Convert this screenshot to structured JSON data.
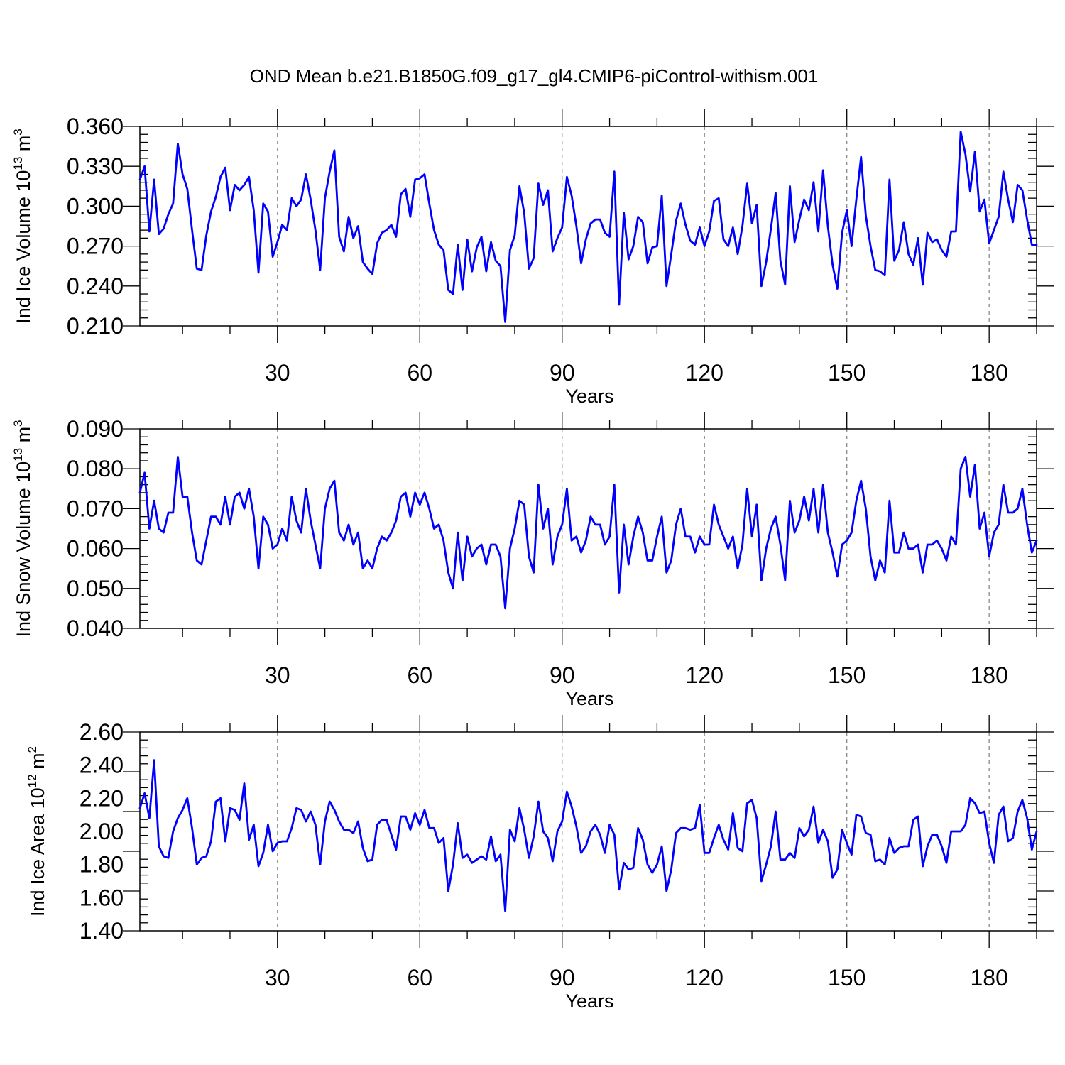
{
  "figure_title": "OND Mean b.e21.B1850G.f09_g17_gl4.CMIP6-piControl-withism.001",
  "line_color": "#0000ff",
  "chart_data": [
    {
      "type": "line",
      "title": "OND Mean b.e21.B1850G.f09_g17_gl4.CMIP6-piControl-withism.001",
      "xlabel": "Years",
      "ylabel": "Ind Ice Volume 10",
      "ylabel_exp": "13",
      "ylabel_unit": " m",
      "ylabel_unit_exp": "3",
      "xlim": [
        1,
        190
      ],
      "ylim": [
        0.21,
        0.36
      ],
      "x_ticks": [
        30,
        60,
        90,
        120,
        150,
        180
      ],
      "x_tick_labels": [
        "30",
        "60",
        "90",
        "120",
        "150",
        "180"
      ],
      "y_ticks": [
        0.21,
        0.24,
        0.27,
        0.3,
        0.33,
        0.36
      ],
      "y_tick_labels": [
        "0.210",
        "0.240",
        "0.270",
        "0.300",
        "0.330",
        "0.360"
      ],
      "grid": "vertical dashed at x ticks",
      "series": [
        {
          "name": "Ind Ice Volume",
          "values": [
            0.32,
            0.33,
            0.281,
            0.32,
            0.279,
            0.283,
            0.294,
            0.302,
            0.347,
            0.324,
            0.313,
            0.282,
            0.253,
            0.252,
            0.278,
            0.296,
            0.307,
            0.322,
            0.329,
            0.297,
            0.316,
            0.312,
            0.316,
            0.322,
            0.297,
            0.25,
            0.302,
            0.296,
            0.262,
            0.273,
            0.286,
            0.282,
            0.306,
            0.3,
            0.305,
            0.324,
            0.305,
            0.282,
            0.252,
            0.306,
            0.326,
            0.342,
            0.277,
            0.266,
            0.292,
            0.276,
            0.285,
            0.258,
            0.253,
            0.249,
            0.272,
            0.28,
            0.282,
            0.286,
            0.277,
            0.309,
            0.313,
            0.292,
            0.32,
            0.321,
            0.324,
            0.302,
            0.282,
            0.271,
            0.267,
            0.237,
            0.234,
            0.271,
            0.237,
            0.275,
            0.251,
            0.269,
            0.277,
            0.251,
            0.273,
            0.259,
            0.255,
            0.213,
            0.267,
            0.278,
            0.315,
            0.295,
            0.253,
            0.261,
            0.317,
            0.301,
            0.312,
            0.266,
            0.276,
            0.284,
            0.322,
            0.308,
            0.285,
            0.257,
            0.275,
            0.287,
            0.29,
            0.29,
            0.28,
            0.277,
            0.326,
            0.226,
            0.295,
            0.26,
            0.27,
            0.292,
            0.288,
            0.257,
            0.269,
            0.27,
            0.308,
            0.24,
            0.264,
            0.289,
            0.302,
            0.286,
            0.274,
            0.271,
            0.284,
            0.27,
            0.281,
            0.304,
            0.306,
            0.275,
            0.27,
            0.284,
            0.264,
            0.285,
            0.317,
            0.287,
            0.301,
            0.24,
            0.258,
            0.283,
            0.31,
            0.259,
            0.241,
            0.315,
            0.273,
            0.29,
            0.305,
            0.297,
            0.318,
            0.281,
            0.327,
            0.285,
            0.256,
            0.238,
            0.28,
            0.297,
            0.27,
            0.305,
            0.337,
            0.293,
            0.27,
            0.252,
            0.251,
            0.248,
            0.32,
            0.259,
            0.267,
            0.288,
            0.264,
            0.256,
            0.276,
            0.241,
            0.28,
            0.273,
            0.275,
            0.267,
            0.262,
            0.281,
            0.281,
            0.356,
            0.339,
            0.311,
            0.341,
            0.296,
            0.305,
            0.272,
            0.282,
            0.292,
            0.326,
            0.305,
            0.288,
            0.316,
            0.312,
            0.29,
            0.271,
            0.271
          ]
        }
      ]
    },
    {
      "type": "line",
      "xlabel": "Years",
      "ylabel": "Ind Snow Volume 10",
      "ylabel_exp": "13",
      "ylabel_unit": " m",
      "ylabel_unit_exp": "3",
      "xlim": [
        1,
        190
      ],
      "ylim": [
        0.04,
        0.09
      ],
      "x_ticks": [
        30,
        60,
        90,
        120,
        150,
        180
      ],
      "x_tick_labels": [
        "30",
        "60",
        "90",
        "120",
        "150",
        "180"
      ],
      "y_ticks": [
        0.04,
        0.05,
        0.06,
        0.07,
        0.08,
        0.09
      ],
      "y_tick_labels": [
        "0.040",
        "0.050",
        "0.060",
        "0.070",
        "0.080",
        "0.090"
      ],
      "grid": "vertical dashed at x ticks",
      "series": [
        {
          "name": "Ind Snow Volume",
          "values": [
            0.074,
            0.079,
            0.065,
            0.072,
            0.065,
            0.064,
            0.069,
            0.069,
            0.083,
            0.073,
            0.073,
            0.064,
            0.057,
            0.056,
            0.062,
            0.068,
            0.068,
            0.066,
            0.073,
            0.066,
            0.073,
            0.074,
            0.07,
            0.075,
            0.068,
            0.055,
            0.068,
            0.066,
            0.06,
            0.061,
            0.065,
            0.062,
            0.073,
            0.067,
            0.064,
            0.075,
            0.067,
            0.061,
            0.055,
            0.07,
            0.075,
            0.077,
            0.064,
            0.062,
            0.066,
            0.061,
            0.064,
            0.055,
            0.057,
            0.055,
            0.06,
            0.063,
            0.062,
            0.064,
            0.067,
            0.073,
            0.074,
            0.068,
            0.074,
            0.071,
            0.074,
            0.07,
            0.065,
            0.066,
            0.062,
            0.054,
            0.05,
            0.064,
            0.052,
            0.063,
            0.058,
            0.06,
            0.061,
            0.056,
            0.061,
            0.061,
            0.058,
            0.045,
            0.06,
            0.065,
            0.072,
            0.071,
            0.058,
            0.054,
            0.076,
            0.065,
            0.07,
            0.056,
            0.063,
            0.066,
            0.075,
            0.062,
            0.063,
            0.059,
            0.062,
            0.068,
            0.066,
            0.066,
            0.061,
            0.063,
            0.076,
            0.049,
            0.066,
            0.056,
            0.063,
            0.068,
            0.064,
            0.057,
            0.057,
            0.063,
            0.068,
            0.054,
            0.057,
            0.066,
            0.07,
            0.063,
            0.063,
            0.059,
            0.063,
            0.061,
            0.061,
            0.071,
            0.066,
            0.063,
            0.06,
            0.063,
            0.055,
            0.061,
            0.075,
            0.063,
            0.071,
            0.052,
            0.06,
            0.065,
            0.068,
            0.061,
            0.052,
            0.072,
            0.064,
            0.067,
            0.073,
            0.067,
            0.075,
            0.064,
            0.076,
            0.064,
            0.059,
            0.053,
            0.061,
            0.062,
            0.064,
            0.072,
            0.077,
            0.07,
            0.058,
            0.052,
            0.057,
            0.054,
            0.072,
            0.059,
            0.059,
            0.064,
            0.06,
            0.06,
            0.061,
            0.054,
            0.061,
            0.061,
            0.062,
            0.06,
            0.057,
            0.063,
            0.061,
            0.08,
            0.083,
            0.073,
            0.081,
            0.065,
            0.069,
            0.058,
            0.064,
            0.066,
            0.076,
            0.069,
            0.069,
            0.07,
            0.075,
            0.066,
            0.059,
            0.062
          ]
        }
      ]
    },
    {
      "type": "line",
      "xlabel": "Years",
      "ylabel": "Ind Ice Area 10",
      "ylabel_exp": "12",
      "ylabel_unit": " m",
      "ylabel_unit_exp": "2",
      "xlim": [
        1,
        190
      ],
      "ylim": [
        1.4,
        2.6
      ],
      "x_ticks": [
        30,
        60,
        90,
        120,
        150,
        180
      ],
      "x_tick_labels": [
        "30",
        "60",
        "90",
        "120",
        "150",
        "180"
      ],
      "y_ticks": [
        1.4,
        1.6,
        1.8,
        2.0,
        2.2,
        2.4,
        2.6
      ],
      "y_tick_labels": [
        "1.40",
        "1.60",
        "1.80",
        "2.00",
        "2.20",
        "2.40",
        "2.60"
      ],
      "grid": "vertical dashed at x ticks",
      "series": [
        {
          "name": "Ind Ice Area",
          "values": [
            2.14,
            2.23,
            2.08,
            2.43,
            1.91,
            1.85,
            1.84,
            2.0,
            2.08,
            2.13,
            2.2,
            2.02,
            1.8,
            1.84,
            1.85,
            1.94,
            2.18,
            2.2,
            1.94,
            2.14,
            2.13,
            2.07,
            2.29,
            1.95,
            2.04,
            1.79,
            1.87,
            2.04,
            1.88,
            1.93,
            1.94,
            1.94,
            2.02,
            2.14,
            2.13,
            2.06,
            2.12,
            2.04,
            1.8,
            2.06,
            2.18,
            2.13,
            2.06,
            2.01,
            2.01,
            1.99,
            2.06,
            1.9,
            1.82,
            1.83,
            2.04,
            2.07,
            2.07,
            1.98,
            1.89,
            2.09,
            2.09,
            2.01,
            2.11,
            2.04,
            2.13,
            2.02,
            2.02,
            1.93,
            1.96,
            1.64,
            1.8,
            2.05,
            1.84,
            1.86,
            1.81,
            1.83,
            1.85,
            1.83,
            1.97,
            1.82,
            1.86,
            1.52,
            2.01,
            1.94,
            2.14,
            2.01,
            1.84,
            1.97,
            2.18,
            2.0,
            1.96,
            1.82,
            2.0,
            2.06,
            2.24,
            2.15,
            2.03,
            1.87,
            1.91,
            2.0,
            2.04,
            1.98,
            1.87,
            2.04,
            1.98,
            1.65,
            1.81,
            1.77,
            1.78,
            2.02,
            1.95,
            1.8,
            1.75,
            1.8,
            1.91,
            1.64,
            1.77,
            1.99,
            2.02,
            2.02,
            2.01,
            2.02,
            2.16,
            1.87,
            1.87,
            1.96,
            2.04,
            1.95,
            1.89,
            2.11,
            1.9,
            1.88,
            2.17,
            2.19,
            2.08,
            1.7,
            1.8,
            1.91,
            2.12,
            1.83,
            1.83,
            1.87,
            1.84,
            2.02,
            1.97,
            2.01,
            2.15,
            1.93,
            2.01,
            1.94,
            1.72,
            1.77,
            2.01,
            1.93,
            1.86,
            2.1,
            2.09,
            1.99,
            1.98,
            1.82,
            1.83,
            1.8,
            1.96,
            1.87,
            1.9,
            1.91,
            1.91,
            2.07,
            2.09,
            1.79,
            1.91,
            1.98,
            1.98,
            1.91,
            1.81,
            2.0,
            2.0,
            2.0,
            2.04,
            2.2,
            2.17,
            2.11,
            2.12,
            1.93,
            1.81,
            2.1,
            2.15,
            1.94,
            1.96,
            2.12,
            2.19,
            2.08,
            1.89,
            2.0
          ]
        }
      ]
    }
  ]
}
